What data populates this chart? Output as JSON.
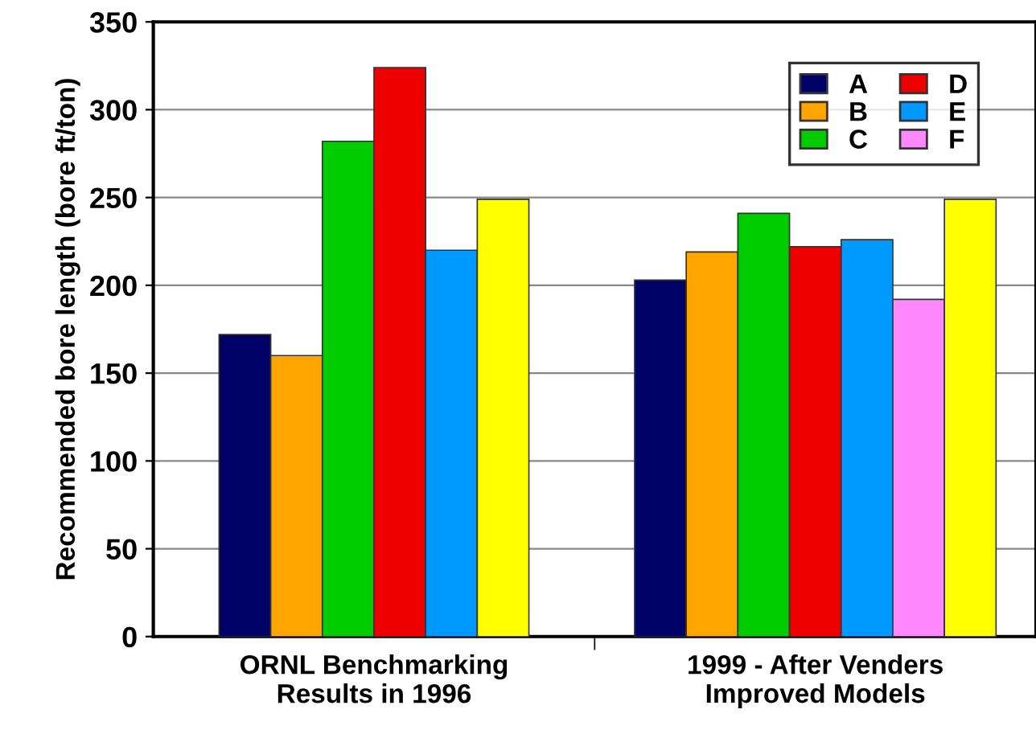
{
  "chart_data": {
    "type": "bar",
    "ylabel": "Recommended bore length (bore ft/ton)",
    "categories": [
      "ORNL Benchmarking\nResults in 1996",
      "1999 - After Venders\nImproved Models"
    ],
    "series": [
      {
        "name": "A",
        "color": "#000066",
        "values": [
          172,
          203
        ]
      },
      {
        "name": "B",
        "color": "#ffa500",
        "values": [
          160,
          219
        ]
      },
      {
        "name": "C",
        "color": "#00cc00",
        "values": [
          282,
          241
        ]
      },
      {
        "name": "D",
        "color": "#ee0000",
        "values": [
          324,
          222
        ]
      },
      {
        "name": "E",
        "color": "#0099ff",
        "values": [
          220,
          226
        ]
      },
      {
        "name": "F",
        "color": "#ff88ff",
        "values": [
          null,
          192
        ]
      },
      {
        "color": "#ffff00",
        "values": [
          249,
          249
        ]
      }
    ],
    "ylim": [
      0,
      350
    ],
    "yticks": [
      0,
      50,
      100,
      150,
      200,
      250,
      300,
      350
    ],
    "grid": "y",
    "legend": "top right"
  }
}
